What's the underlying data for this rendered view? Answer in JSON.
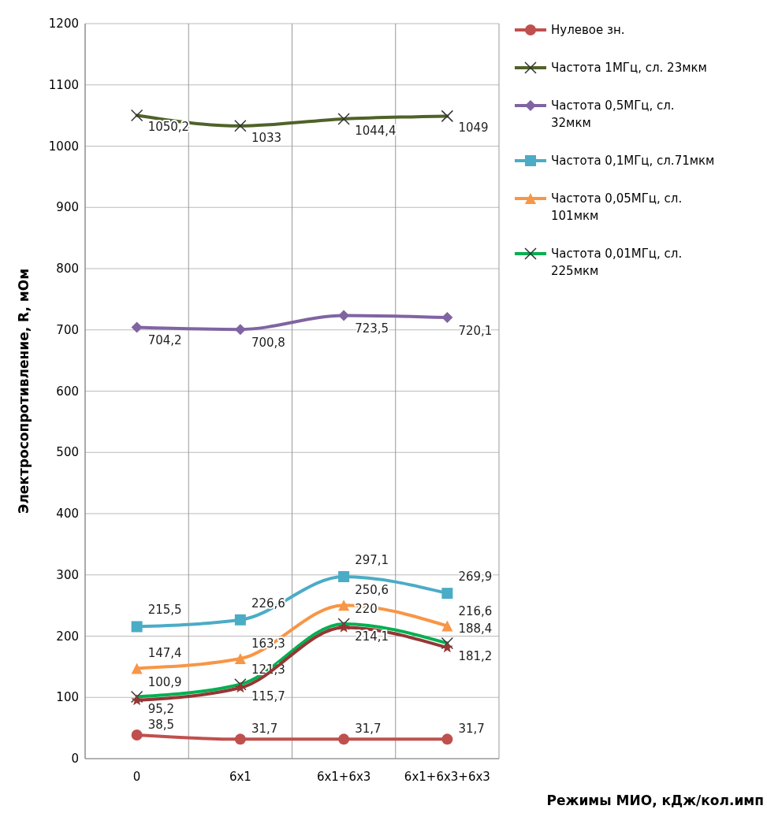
{
  "chart_data": {
    "type": "line",
    "xlabel": "Режимы МИО, кДж/кол.имп",
    "ylabel": "Электросопротивление, R, мОм",
    "categories": [
      "0",
      "6x1",
      "6x1+6x3",
      "6x1+6x3+6x3"
    ],
    "ylim": [
      0,
      1200
    ],
    "yticks": [
      0,
      100,
      200,
      300,
      400,
      500,
      600,
      700,
      800,
      900,
      1000,
      1100,
      1200
    ],
    "grid": true,
    "legend": "right",
    "series": [
      {
        "name": "Нулевое зн.",
        "color": "#c0504d",
        "marker": "circle",
        "values": [
          38.5,
          31.7,
          31.7,
          31.7
        ],
        "value_labels": [
          "38,5",
          "31,7",
          "31,7",
          "31,7"
        ]
      },
      {
        "name": "Частота 1МГц, сл. 23мкм",
        "color": "#4f6228",
        "marker": "cross",
        "values": [
          1050.2,
          1033,
          1044.4,
          1049
        ],
        "value_labels": [
          "1050,2",
          "1033",
          "1044,4",
          "1049"
        ]
      },
      {
        "name": "Частота 0,5МГц, сл. 32мкм",
        "color": "#8064a2",
        "marker": "diamond",
        "values": [
          704.2,
          700.8,
          723.5,
          720.1
        ],
        "value_labels": [
          "704,2",
          "700,8",
          "723,5",
          "720,1"
        ]
      },
      {
        "name": "Частота 0,1МГц, сл.71мкм",
        "color": "#4bacc6",
        "marker": "square",
        "values": [
          215.5,
          226.6,
          297.1,
          269.9
        ],
        "value_labels": [
          "215,5",
          "226,6",
          "297,1",
          "269,9"
        ]
      },
      {
        "name": "Частота 0,05МГц, сл. 101мкм",
        "color": "#f79646",
        "marker": "triangle",
        "values": [
          147.4,
          163.3,
          250.6,
          216.6
        ],
        "value_labels": [
          "147,4",
          "163,3",
          "250,6",
          "216,6"
        ]
      },
      {
        "name": "Частота 0,01МГц, сл. 225мкм",
        "color": "#00b050",
        "marker": "cross",
        "values": [
          100.9,
          121.3,
          220,
          188.4
        ],
        "value_labels": [
          "100,9",
          "121,3",
          "220",
          "188,4"
        ]
      },
      {
        "color": "#953735",
        "marker": "star",
        "values": [
          95.2,
          115.7,
          214.1,
          181.2
        ],
        "value_labels": [
          "95,2",
          "115,7",
          "214,1",
          "181,2"
        ]
      }
    ]
  }
}
